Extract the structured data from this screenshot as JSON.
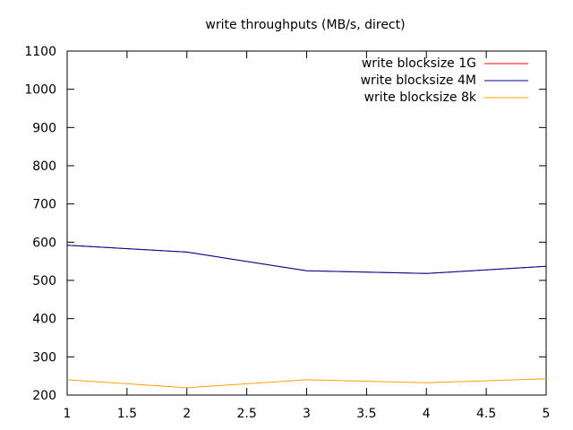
{
  "chart_data": {
    "type": "line",
    "title": "write throughputs (MB/s, direct)",
    "xlabel": "",
    "ylabel": "",
    "xlim": [
      1,
      5
    ],
    "ylim": [
      200,
      1100
    ],
    "xticks": [
      "1",
      "1.5",
      "2",
      "2.5",
      "3",
      "3.5",
      "4",
      "4.5",
      "5"
    ],
    "yticks": [
      "200",
      "300",
      "400",
      "500",
      "600",
      "700",
      "800",
      "900",
      "1000",
      "1100"
    ],
    "grid": false,
    "legend_position": "top-right",
    "x": [
      1,
      2,
      3,
      4,
      5
    ],
    "series": [
      {
        "name": "write blocksize 1G",
        "color": "#ff0000",
        "values": [
          592,
          574,
          525,
          518,
          537
        ]
      },
      {
        "name": "write blocksize 4M",
        "color": "#0000a0",
        "values": [
          592,
          574,
          525,
          518,
          537
        ]
      },
      {
        "name": "write blocksize 8k",
        "color": "#ffa000",
        "values": [
          240,
          219,
          240,
          232,
          243
        ]
      }
    ]
  }
}
